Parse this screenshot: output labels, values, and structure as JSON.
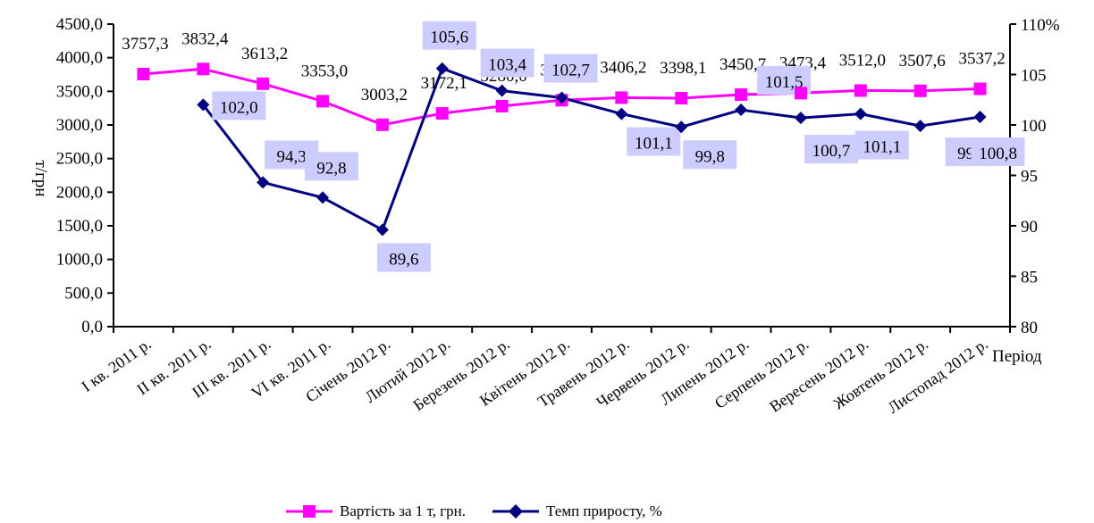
{
  "chart_data": {
    "type": "line",
    "categories": [
      "I кв. 2011 р.",
      "ІІ кв. 2011 р.",
      "ІІІ кв. 2011 р.",
      "VІ кв. 2011 р.",
      "Січень 2012 р.",
      "Лютий 2012 р.",
      "Березень 2012 р.",
      "Квітень 2012 р.",
      "Травень 2012 р.",
      "Червень 2012 р.",
      "Липень 2012 р.",
      "Серпень 2012 р.",
      "Вересень 2012 р.",
      "Жовтень 2012 р.",
      "Листопад 2012 р."
    ],
    "series": [
      {
        "name": "Вартість за 1 т, грн.",
        "axis": "left",
        "color": "#ff00ff",
        "marker": "square",
        "values": [
          3757.3,
          3832.4,
          3613.2,
          3353.0,
          3003.2,
          3172.1,
          3280.0,
          3368.0,
          3406.2,
          3398.1,
          3450.7,
          3473.4,
          3512.0,
          3507.6,
          3537.2
        ],
        "labels": [
          "3757,3",
          "3832,4",
          "3613,2",
          "3353,0",
          "3003,2",
          "3172,1",
          "3280,0",
          "3368,0",
          "3406,2",
          "3398,1",
          "3450,7",
          "3473,4",
          "3512,0",
          "3507,6",
          "3537,2"
        ]
      },
      {
        "name": "Темп приросту,  %",
        "axis": "right",
        "color": "#000080",
        "marker": "diamond",
        "values": [
          null,
          102.0,
          94.3,
          92.8,
          89.6,
          105.6,
          103.4,
          102.7,
          101.1,
          99.8,
          101.5,
          100.7,
          101.1,
          99.9,
          100.8
        ],
        "labels": [
          "",
          "102,0",
          "94,3",
          "92,8",
          "89,6",
          "105,6",
          "103,4",
          "102,7",
          "101,1",
          "99,8",
          "101,5",
          "100,7",
          "101,1",
          "99,9",
          "100,8"
        ]
      }
    ],
    "y_left": {
      "label": "т/грн",
      "min": 0,
      "max": 4500,
      "step": 500,
      "ticks": [
        "0,0",
        "500,0",
        "1000,0",
        "1500,0",
        "2000,0",
        "2500,0",
        "3000,0",
        "3500,0",
        "4000,0",
        "4500,0"
      ]
    },
    "y_right": {
      "min": 80,
      "max": 110,
      "step": 5,
      "ticks": [
        "80",
        "85",
        "90",
        "95",
        "100",
        "105",
        "110%"
      ]
    },
    "xlabel": "Період",
    "label_bg": "#ccccff",
    "legend_position": "bottom",
    "grid": false
  }
}
